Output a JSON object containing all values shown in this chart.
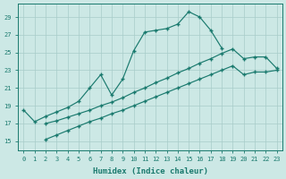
{
  "xlabel": "Humidex (Indice chaleur)",
  "bg_color": "#cce8e5",
  "grid_color": "#a8ccc9",
  "line_color": "#1a7a6e",
  "xlim": [
    -0.5,
    23.5
  ],
  "ylim": [
    14.0,
    30.5
  ],
  "xticks": [
    0,
    1,
    2,
    3,
    4,
    5,
    6,
    7,
    8,
    9,
    10,
    11,
    12,
    13,
    14,
    15,
    16,
    17,
    18,
    19,
    20,
    21,
    22,
    23
  ],
  "yticks": [
    15,
    17,
    19,
    21,
    23,
    25,
    27,
    29
  ],
  "line1_x": [
    0,
    1,
    2,
    3,
    4,
    5,
    6,
    7,
    8,
    9,
    10,
    11,
    12,
    13,
    14,
    15,
    16,
    17,
    18
  ],
  "line1_y": [
    18.5,
    17.2,
    17.8,
    18.3,
    18.8,
    19.5,
    21.0,
    22.5,
    20.2,
    22.0,
    25.2,
    27.3,
    27.5,
    27.7,
    28.2,
    29.6,
    29.0,
    27.5,
    25.5
  ],
  "line2_x": [
    2,
    3,
    4,
    5,
    6,
    7,
    8,
    9,
    10,
    11,
    12,
    13,
    14,
    15,
    16,
    17,
    18,
    19,
    20,
    21,
    22,
    23
  ],
  "line2_y": [
    17.0,
    17.3,
    17.7,
    18.1,
    18.5,
    19.0,
    19.4,
    19.9,
    20.5,
    21.0,
    21.6,
    22.1,
    22.7,
    23.2,
    23.8,
    24.3,
    24.9,
    25.4,
    24.3,
    24.5,
    24.5,
    23.2
  ],
  "line3_x": [
    2,
    3,
    4,
    5,
    6,
    7,
    8,
    9,
    10,
    11,
    12,
    13,
    14,
    15,
    16,
    17,
    18,
    19,
    20,
    21,
    22,
    23
  ],
  "line3_y": [
    15.2,
    15.7,
    16.2,
    16.7,
    17.2,
    17.6,
    18.1,
    18.5,
    19.0,
    19.5,
    20.0,
    20.5,
    21.0,
    21.5,
    22.0,
    22.5,
    23.0,
    23.5,
    22.5,
    22.8,
    22.8,
    23.0
  ]
}
